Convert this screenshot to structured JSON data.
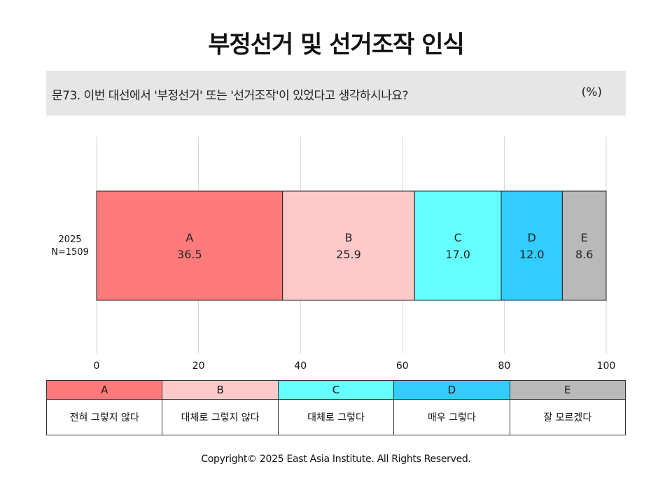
{
  "title": "부정선거 및 선거조작 인식",
  "question": {
    "text": "문73. 이번 대선에서 '부정선거' 또는 '선거조작'이 있었다고 생각하시나요?",
    "unit": "(%)"
  },
  "chart_data": {
    "type": "bar",
    "orientation": "horizontal-stacked",
    "categories": [
      "2025 N=1509"
    ],
    "category_lines": [
      [
        "2025",
        "N=1509"
      ]
    ],
    "series": [
      {
        "name": "A",
        "values": [
          36.5
        ],
        "color": "#ff7b7b"
      },
      {
        "name": "B",
        "values": [
          25.9
        ],
        "color": "#ffc9c9"
      },
      {
        "name": "C",
        "values": [
          17.0
        ],
        "color": "#66ffff"
      },
      {
        "name": "D",
        "values": [
          12.0
        ],
        "color": "#33ccff"
      },
      {
        "name": "E",
        "values": [
          8.6
        ],
        "color": "#b9b9b9"
      }
    ],
    "xlim": [
      0,
      100
    ],
    "xticks": [
      0,
      20,
      40,
      60,
      80,
      100
    ],
    "grid": true
  },
  "legend": [
    {
      "key": "A",
      "label": "전혀 그렇지 않다",
      "color": "#ff7b7b"
    },
    {
      "key": "B",
      "label": "대체로 그렇지 않다",
      "color": "#ffc9c9"
    },
    {
      "key": "C",
      "label": "대체로 그렇다",
      "color": "#66ffff"
    },
    {
      "key": "D",
      "label": "매우 그렇다",
      "color": "#33ccff"
    },
    {
      "key": "E",
      "label": "잘 모르겠다",
      "color": "#b9b9b9"
    }
  ],
  "copyright": "Copyright© 2025 East Asia Institute. All Rights Reserved."
}
